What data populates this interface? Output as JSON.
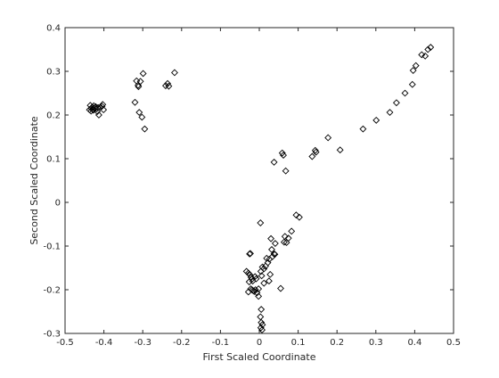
{
  "chart_data": {
    "type": "scatter",
    "title": "",
    "xlabel": "First Scaled Coordinate",
    "ylabel": "Second Scaled Coordinate",
    "xlim": [
      -0.5,
      0.5
    ],
    "ylim": [
      -0.3,
      0.4
    ],
    "xticks": [
      -0.5,
      -0.4,
      -0.3,
      -0.2,
      -0.1,
      0,
      0.1,
      0.2,
      0.3,
      0.4,
      0.5
    ],
    "xtick_labels": [
      "-0.5",
      "-0.4",
      "-0.3",
      "-0.2",
      "-0.1",
      "0",
      "0.1",
      "0.2",
      "0.3",
      "0.4",
      "0.5"
    ],
    "yticks": [
      -0.3,
      -0.2,
      -0.1,
      0,
      0.1,
      0.2,
      0.3,
      0.4
    ],
    "ytick_labels": [
      "-0.3",
      "-0.2",
      "-0.1",
      "0",
      "0.1",
      "0.2",
      "0.3",
      "0.4"
    ],
    "marker": "diamond",
    "marker_color": "#000000",
    "grid": false,
    "series": [
      {
        "points": [
          [
            -0.435,
            0.222
          ],
          [
            -0.432,
            0.215
          ],
          [
            -0.43,
            0.218
          ],
          [
            -0.428,
            0.213
          ],
          [
            -0.426,
            0.221
          ],
          [
            -0.424,
            0.216
          ],
          [
            -0.421,
            0.219
          ],
          [
            -0.419,
            0.214
          ],
          [
            -0.417,
            0.208
          ],
          [
            -0.415,
            0.217
          ],
          [
            -0.413,
            0.2
          ],
          [
            -0.409,
            0.218
          ],
          [
            -0.405,
            0.22
          ],
          [
            -0.403,
            0.224
          ],
          [
            -0.401,
            0.212
          ],
          [
            -0.437,
            0.212
          ],
          [
            -0.433,
            0.209
          ],
          [
            -0.427,
            0.211
          ],
          [
            -0.32,
            0.229
          ],
          [
            -0.316,
            0.278
          ],
          [
            -0.312,
            0.268
          ],
          [
            -0.311,
            0.265
          ],
          [
            -0.309,
            0.206
          ],
          [
            -0.306,
            0.277
          ],
          [
            -0.302,
            0.195
          ],
          [
            -0.299,
            0.295
          ],
          [
            -0.295,
            0.168
          ],
          [
            -0.241,
            0.267
          ],
          [
            -0.236,
            0.272
          ],
          [
            -0.233,
            0.266
          ],
          [
            -0.218,
            0.297
          ],
          [
            0.038,
            0.092
          ],
          [
            0.059,
            0.113
          ],
          [
            0.062,
            0.108
          ],
          [
            0.068,
            0.072
          ],
          [
            0.136,
            0.105
          ],
          [
            0.144,
            0.119
          ],
          [
            0.146,
            0.115
          ],
          [
            0.177,
            0.148
          ],
          [
            0.208,
            0.12
          ],
          [
            0.267,
            0.168
          ],
          [
            0.301,
            0.188
          ],
          [
            0.336,
            0.206
          ],
          [
            0.353,
            0.228
          ],
          [
            0.375,
            0.25
          ],
          [
            0.394,
            0.27
          ],
          [
            0.396,
            0.302
          ],
          [
            0.403,
            0.313
          ],
          [
            0.418,
            0.338
          ],
          [
            0.427,
            0.335
          ],
          [
            0.434,
            0.35
          ],
          [
            0.441,
            0.355
          ],
          [
            0.003,
            -0.047
          ],
          [
            0.095,
            -0.029
          ],
          [
            0.103,
            -0.034
          ],
          [
            0.083,
            -0.066
          ],
          [
            0.066,
            -0.078
          ],
          [
            0.075,
            -0.082
          ],
          [
            0.064,
            -0.091
          ],
          [
            0.07,
            -0.092
          ],
          [
            0.03,
            -0.083
          ],
          [
            0.041,
            -0.094
          ],
          [
            0.032,
            -0.108
          ],
          [
            0.038,
            -0.118
          ],
          [
            0.04,
            -0.119
          ],
          [
            0.034,
            -0.124
          ],
          [
            0.026,
            -0.13
          ],
          [
            0.019,
            -0.128
          ],
          [
            0.022,
            -0.138
          ],
          [
            0.016,
            -0.146
          ],
          [
            0.008,
            -0.148
          ],
          [
            0.012,
            -0.152
          ],
          [
            -0.023,
            -0.117
          ],
          [
            -0.025,
            -0.118
          ],
          [
            -0.033,
            -0.158
          ],
          [
            -0.028,
            -0.162
          ],
          [
            -0.024,
            -0.166
          ],
          [
            -0.021,
            -0.172
          ],
          [
            -0.018,
            -0.175
          ],
          [
            -0.026,
            -0.182
          ],
          [
            -0.017,
            -0.18
          ],
          [
            -0.011,
            -0.17
          ],
          [
            -0.008,
            -0.175
          ],
          [
            0.004,
            -0.158
          ],
          [
            0.006,
            -0.168
          ],
          [
            0.028,
            -0.165
          ],
          [
            0.025,
            -0.18
          ],
          [
            0.012,
            -0.185
          ],
          [
            -0.022,
            -0.198
          ],
          [
            -0.019,
            -0.2
          ],
          [
            -0.016,
            -0.202
          ],
          [
            -0.013,
            -0.204
          ],
          [
            -0.01,
            -0.2
          ],
          [
            -0.006,
            -0.207
          ],
          [
            -0.002,
            -0.198
          ],
          [
            -0.028,
            -0.205
          ],
          [
            0.055,
            -0.197
          ],
          [
            -0.002,
            -0.215
          ],
          [
            0.005,
            -0.245
          ],
          [
            0.003,
            -0.262
          ],
          [
            0.005,
            -0.275
          ],
          [
            0.008,
            -0.28
          ],
          [
            0.004,
            -0.287
          ],
          [
            0.007,
            -0.292
          ]
        ]
      }
    ]
  }
}
